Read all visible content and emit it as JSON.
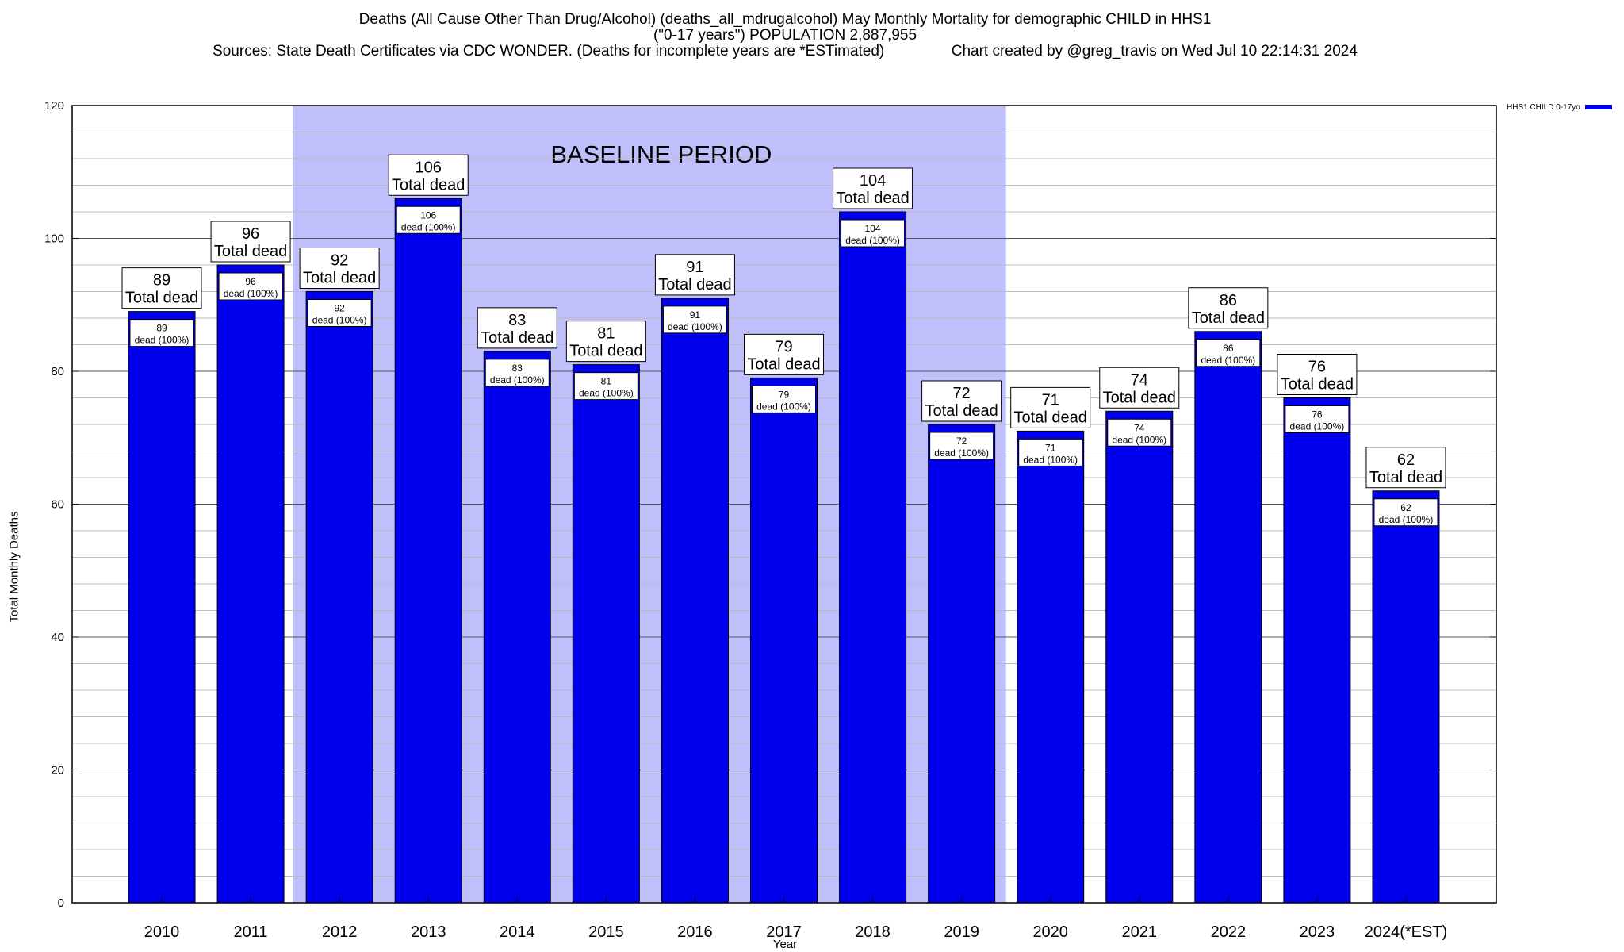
{
  "header": {
    "title_line1": "Deaths (All Cause Other Than Drug/Alcohol) (deaths_all_mdrugalcohol) May Monthly Mortality for demographic CHILD in HHS1",
    "title_line2": "(\"0-17 years\") POPULATION 2,887,955",
    "title_line3": "Sources: State Death Certificates via CDC WONDER. (Deaths for incomplete years are *ESTimated)                Chart created by @greg_travis on Wed Jul 10 22:14:31 2024"
  },
  "colors": {
    "bar": "#0000ee",
    "baseline_band": "#bfbffb",
    "label_box": "#ffffff"
  },
  "chart_data": {
    "type": "bar",
    "title": "Deaths (All Cause Other Than Drug/Alcohol) (deaths_all_mdrugalcohol) May Monthly Mortality for demographic CHILD in HHS1",
    "xlabel": "Year",
    "ylabel": "Total Monthly Deaths",
    "ylim": [
      0,
      120
    ],
    "yticks": [
      0,
      20,
      40,
      60,
      80,
      100,
      120
    ],
    "grid": true,
    "legend_position": "top-right",
    "categories": [
      "2010",
      "2011",
      "2012",
      "2013",
      "2014",
      "2015",
      "2016",
      "2017",
      "2018",
      "2019",
      "2020",
      "2021",
      "2022",
      "2023",
      "2024(*EST)"
    ],
    "series": [
      {
        "name": "HHS1 CHILD 0-17yo",
        "values": [
          89,
          96,
          92,
          106,
          83,
          81,
          91,
          79,
          104,
          72,
          71,
          74,
          86,
          76,
          62
        ]
      }
    ],
    "top_label_text": "Total dead",
    "inner_label_text": "dead (100%)",
    "baseline_band": {
      "label": "BASELINE PERIOD",
      "from": "2012",
      "to": "2019"
    }
  }
}
